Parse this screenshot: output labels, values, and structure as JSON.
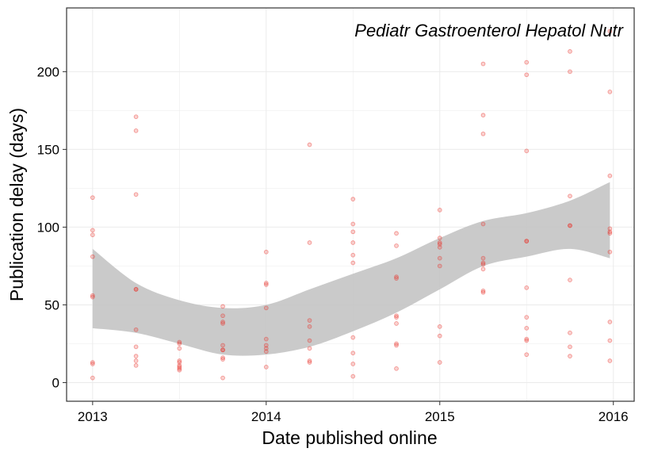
{
  "chart_data": {
    "type": "scatter",
    "annotation": "Pediatr Gastroenterol Hepatol Nutr",
    "xlabel": "Date published online",
    "ylabel": "Publication delay (days)",
    "xlim": [
      2012.85,
      2016.12
    ],
    "ylim": [
      -12,
      241
    ],
    "x_ticks": [
      2013,
      2014,
      2015,
      2016
    ],
    "x_tick_labels": [
      "2013",
      "2014",
      "2015",
      "2016"
    ],
    "y_ticks": [
      0,
      50,
      100,
      150,
      200
    ],
    "y_tick_labels": [
      "0",
      "50",
      "100",
      "150",
      "200"
    ],
    "grid": true,
    "colors": {
      "point": "#e8302a",
      "band": "#c4c4c4",
      "grid": "#ebebeb",
      "border": "#333333"
    },
    "points": [
      {
        "x": 2013.0,
        "y": 119
      },
      {
        "x": 2013.0,
        "y": 98
      },
      {
        "x": 2013.0,
        "y": 95
      },
      {
        "x": 2013.0,
        "y": 81
      },
      {
        "x": 2013.0,
        "y": 56
      },
      {
        "x": 2013.0,
        "y": 55
      },
      {
        "x": 2013.0,
        "y": 13
      },
      {
        "x": 2013.0,
        "y": 12
      },
      {
        "x": 2013.0,
        "y": 3
      },
      {
        "x": 2013.25,
        "y": 171
      },
      {
        "x": 2013.25,
        "y": 162
      },
      {
        "x": 2013.25,
        "y": 121
      },
      {
        "x": 2013.25,
        "y": 60
      },
      {
        "x": 2013.25,
        "y": 60
      },
      {
        "x": 2013.25,
        "y": 34
      },
      {
        "x": 2013.25,
        "y": 23
      },
      {
        "x": 2013.25,
        "y": 17
      },
      {
        "x": 2013.25,
        "y": 14
      },
      {
        "x": 2013.25,
        "y": 11
      },
      {
        "x": 2013.5,
        "y": 26
      },
      {
        "x": 2013.5,
        "y": 25
      },
      {
        "x": 2013.5,
        "y": 22
      },
      {
        "x": 2013.5,
        "y": 14
      },
      {
        "x": 2013.5,
        "y": 13
      },
      {
        "x": 2013.5,
        "y": 11
      },
      {
        "x": 2013.5,
        "y": 10
      },
      {
        "x": 2013.5,
        "y": 9
      },
      {
        "x": 2013.5,
        "y": 8
      },
      {
        "x": 2013.75,
        "y": 49
      },
      {
        "x": 2013.75,
        "y": 43
      },
      {
        "x": 2013.75,
        "y": 39
      },
      {
        "x": 2013.75,
        "y": 38
      },
      {
        "x": 2013.75,
        "y": 24
      },
      {
        "x": 2013.75,
        "y": 21
      },
      {
        "x": 2013.75,
        "y": 21
      },
      {
        "x": 2013.75,
        "y": 16
      },
      {
        "x": 2013.75,
        "y": 15
      },
      {
        "x": 2013.75,
        "y": 3
      },
      {
        "x": 2014.0,
        "y": 84
      },
      {
        "x": 2014.0,
        "y": 64
      },
      {
        "x": 2014.0,
        "y": 63
      },
      {
        "x": 2014.0,
        "y": 48
      },
      {
        "x": 2014.0,
        "y": 28
      },
      {
        "x": 2014.0,
        "y": 24
      },
      {
        "x": 2014.0,
        "y": 22
      },
      {
        "x": 2014.0,
        "y": 20
      },
      {
        "x": 2014.0,
        "y": 10
      },
      {
        "x": 2014.25,
        "y": 153
      },
      {
        "x": 2014.25,
        "y": 90
      },
      {
        "x": 2014.25,
        "y": 40
      },
      {
        "x": 2014.25,
        "y": 36
      },
      {
        "x": 2014.25,
        "y": 27
      },
      {
        "x": 2014.25,
        "y": 22
      },
      {
        "x": 2014.25,
        "y": 14
      },
      {
        "x": 2014.25,
        "y": 13
      },
      {
        "x": 2014.5,
        "y": 118
      },
      {
        "x": 2014.5,
        "y": 102
      },
      {
        "x": 2014.5,
        "y": 97
      },
      {
        "x": 2014.5,
        "y": 90
      },
      {
        "x": 2014.5,
        "y": 82
      },
      {
        "x": 2014.5,
        "y": 77
      },
      {
        "x": 2014.5,
        "y": 29
      },
      {
        "x": 2014.5,
        "y": 19
      },
      {
        "x": 2014.5,
        "y": 12
      },
      {
        "x": 2014.5,
        "y": 4
      },
      {
        "x": 2014.75,
        "y": 96
      },
      {
        "x": 2014.75,
        "y": 88
      },
      {
        "x": 2014.75,
        "y": 68
      },
      {
        "x": 2014.75,
        "y": 67
      },
      {
        "x": 2014.75,
        "y": 43
      },
      {
        "x": 2014.75,
        "y": 42
      },
      {
        "x": 2014.75,
        "y": 38
      },
      {
        "x": 2014.75,
        "y": 25
      },
      {
        "x": 2014.75,
        "y": 24
      },
      {
        "x": 2014.75,
        "y": 9
      },
      {
        "x": 2015.0,
        "y": 111
      },
      {
        "x": 2015.0,
        "y": 93
      },
      {
        "x": 2015.0,
        "y": 90
      },
      {
        "x": 2015.0,
        "y": 89
      },
      {
        "x": 2015.0,
        "y": 87
      },
      {
        "x": 2015.0,
        "y": 80
      },
      {
        "x": 2015.0,
        "y": 75
      },
      {
        "x": 2015.0,
        "y": 36
      },
      {
        "x": 2015.0,
        "y": 30
      },
      {
        "x": 2015.0,
        "y": 13
      },
      {
        "x": 2015.25,
        "y": 205
      },
      {
        "x": 2015.25,
        "y": 172
      },
      {
        "x": 2015.25,
        "y": 160
      },
      {
        "x": 2015.25,
        "y": 102
      },
      {
        "x": 2015.25,
        "y": 80
      },
      {
        "x": 2015.25,
        "y": 77
      },
      {
        "x": 2015.25,
        "y": 76
      },
      {
        "x": 2015.25,
        "y": 73
      },
      {
        "x": 2015.25,
        "y": 59
      },
      {
        "x": 2015.25,
        "y": 58
      },
      {
        "x": 2015.5,
        "y": 206
      },
      {
        "x": 2015.5,
        "y": 198
      },
      {
        "x": 2015.5,
        "y": 149
      },
      {
        "x": 2015.5,
        "y": 91
      },
      {
        "x": 2015.5,
        "y": 91
      },
      {
        "x": 2015.5,
        "y": 61
      },
      {
        "x": 2015.5,
        "y": 42
      },
      {
        "x": 2015.5,
        "y": 35
      },
      {
        "x": 2015.5,
        "y": 28
      },
      {
        "x": 2015.5,
        "y": 27
      },
      {
        "x": 2015.5,
        "y": 18
      },
      {
        "x": 2015.75,
        "y": 213
      },
      {
        "x": 2015.75,
        "y": 200
      },
      {
        "x": 2015.75,
        "y": 120
      },
      {
        "x": 2015.75,
        "y": 101
      },
      {
        "x": 2015.75,
        "y": 101
      },
      {
        "x": 2015.75,
        "y": 66
      },
      {
        "x": 2015.75,
        "y": 32
      },
      {
        "x": 2015.75,
        "y": 23
      },
      {
        "x": 2015.75,
        "y": 17
      },
      {
        "x": 2015.98,
        "y": 226
      },
      {
        "x": 2015.98,
        "y": 187
      },
      {
        "x": 2015.98,
        "y": 133
      },
      {
        "x": 2015.98,
        "y": 99
      },
      {
        "x": 2015.98,
        "y": 97
      },
      {
        "x": 2015.98,
        "y": 96
      },
      {
        "x": 2015.98,
        "y": 84
      },
      {
        "x": 2015.98,
        "y": 39
      },
      {
        "x": 2015.98,
        "y": 27
      },
      {
        "x": 2015.98,
        "y": 14
      }
    ],
    "smooth_band": [
      {
        "x": 2013.0,
        "upper": 86,
        "lower": 35
      },
      {
        "x": 2013.25,
        "upper": 64,
        "lower": 32
      },
      {
        "x": 2013.5,
        "upper": 53,
        "lower": 25
      },
      {
        "x": 2013.75,
        "upper": 48,
        "lower": 18
      },
      {
        "x": 2014.0,
        "upper": 50,
        "lower": 18
      },
      {
        "x": 2014.25,
        "upper": 60,
        "lower": 23
      },
      {
        "x": 2014.5,
        "upper": 70,
        "lower": 33
      },
      {
        "x": 2014.75,
        "upper": 80,
        "lower": 45
      },
      {
        "x": 2015.0,
        "upper": 93,
        "lower": 60
      },
      {
        "x": 2015.25,
        "upper": 104,
        "lower": 75
      },
      {
        "x": 2015.5,
        "upper": 109,
        "lower": 81
      },
      {
        "x": 2015.75,
        "upper": 117,
        "lower": 86
      },
      {
        "x": 2015.98,
        "upper": 129,
        "lower": 80
      }
    ]
  }
}
